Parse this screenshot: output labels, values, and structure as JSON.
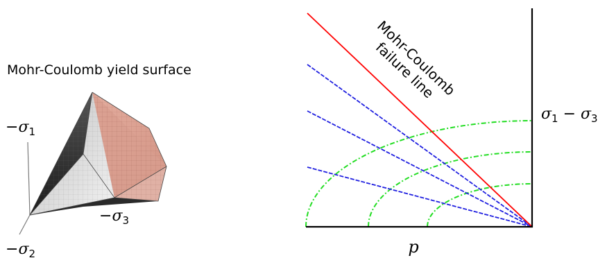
{
  "left_panel": {
    "title": "Mohr-Coulomb yield surface",
    "axis_labels": {
      "sigma1": {
        "sign": "−",
        "symbol": "σ",
        "sub": "1"
      },
      "sigma2": {
        "sign": "−",
        "symbol": "σ",
        "sub": "2"
      },
      "sigma3": {
        "sign": "−",
        "symbol": "σ",
        "sub": "3"
      }
    }
  },
  "right_panel": {
    "failure_line_label_1": "Mohr-Coulomb",
    "failure_line_label_2": "failure line",
    "x_axis_label": "p",
    "y_axis_label": {
      "a": "σ",
      "a_sub": "1",
      "op": " − ",
      "b": "σ",
      "b_sub": "3"
    }
  },
  "colors": {
    "failure_line": "#ff0000",
    "stress_paths": "#1f1fe0",
    "mohr_circles": "#22dd22",
    "surface_shaded": "#d9a08f",
    "surface_light": "#e9e9e9",
    "surface_dark": "#2a2a2a"
  }
}
